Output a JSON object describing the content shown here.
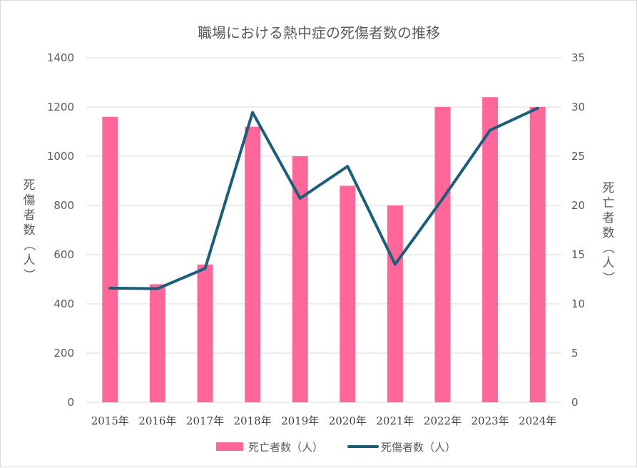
{
  "chart_data": {
    "type": "bar",
    "title": "職場における熱中症の死傷者数の推移",
    "categories": [
      "2015年",
      "2016年",
      "2017年",
      "2018年",
      "2019年",
      "2020年",
      "2021年",
      "2022年",
      "2023年",
      "2024年"
    ],
    "ylabel": "死傷者数（人）",
    "y2label": "死亡者数（人）",
    "ylim": [
      0,
      1400
    ],
    "y2lim": [
      0,
      35
    ],
    "yticks": [
      "0",
      "200",
      "400",
      "600",
      "800",
      "1000",
      "1200",
      "1400"
    ],
    "y2ticks": [
      "0",
      "5",
      "10",
      "15",
      "20",
      "25",
      "30",
      "35"
    ],
    "grid": true,
    "legend_position": "bottom",
    "series": [
      {
        "name": "死亡者数（人）",
        "type": "bar",
        "axis": "right",
        "color": "#FF6699",
        "values": [
          29,
          12,
          14,
          28,
          25,
          22,
          20,
          30,
          31,
          30
        ]
      },
      {
        "name": "死傷者数（人）",
        "type": "line",
        "axis": "left",
        "color": "#1A5E7A",
        "values": [
          464,
          462,
          544,
          1178,
          829,
          959,
          561,
          827,
          1106,
          1195
        ]
      }
    ]
  }
}
